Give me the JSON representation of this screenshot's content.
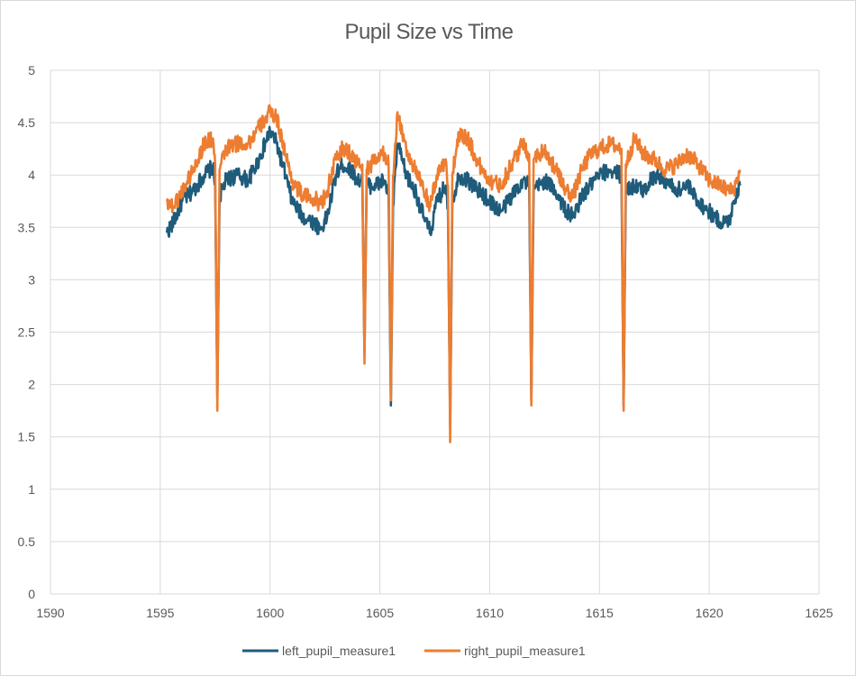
{
  "chart_data": {
    "type": "line",
    "title": "Pupil Size vs Time",
    "xlabel": "",
    "ylabel": "",
    "xlim": [
      1590,
      1625
    ],
    "ylim": [
      0,
      5
    ],
    "x_ticks": [
      "1590",
      "1595",
      "1600",
      "1605",
      "1610",
      "1615",
      "1620",
      "1625"
    ],
    "y_ticks": [
      "0",
      "0.5",
      "1",
      "1.5",
      "2",
      "2.5",
      "3",
      "3.5",
      "4",
      "4.5",
      "5"
    ],
    "grid": true,
    "legend_position": "bottom",
    "x_range": [
      1595.3,
      1621.4
    ],
    "series": [
      {
        "name": "left_pupil_measure1",
        "color": "#1f5b7a",
        "points": [
          [
            1595.3,
            3.45
          ],
          [
            1595.6,
            3.55
          ],
          [
            1596.0,
            3.75
          ],
          [
            1596.5,
            3.85
          ],
          [
            1597.0,
            4.0
          ],
          [
            1597.4,
            4.08
          ],
          [
            1597.5,
            3.9
          ],
          [
            1597.6,
            1.9
          ],
          [
            1597.7,
            3.8
          ],
          [
            1598.0,
            3.95
          ],
          [
            1598.5,
            4.0
          ],
          [
            1599.0,
            3.95
          ],
          [
            1599.5,
            4.15
          ],
          [
            1600.0,
            4.42
          ],
          [
            1600.3,
            4.3
          ],
          [
            1600.7,
            4.0
          ],
          [
            1601.0,
            3.75
          ],
          [
            1601.5,
            3.6
          ],
          [
            1602.0,
            3.55
          ],
          [
            1602.3,
            3.48
          ],
          [
            1602.6,
            3.6
          ],
          [
            1603.0,
            4.0
          ],
          [
            1603.3,
            4.1
          ],
          [
            1603.7,
            4.05
          ],
          [
            1604.0,
            3.95
          ],
          [
            1604.2,
            3.95
          ],
          [
            1604.3,
            2.3
          ],
          [
            1604.4,
            3.9
          ],
          [
            1604.8,
            3.9
          ],
          [
            1605.2,
            3.95
          ],
          [
            1605.4,
            3.8
          ],
          [
            1605.5,
            1.8
          ],
          [
            1605.6,
            3.7
          ],
          [
            1605.8,
            4.3
          ],
          [
            1606.2,
            4.0
          ],
          [
            1606.6,
            3.85
          ],
          [
            1607.0,
            3.6
          ],
          [
            1607.3,
            3.45
          ],
          [
            1607.6,
            3.75
          ],
          [
            1608.0,
            3.9
          ],
          [
            1608.1,
            3.7
          ],
          [
            1608.2,
            1.6
          ],
          [
            1608.3,
            3.75
          ],
          [
            1608.6,
            4.0
          ],
          [
            1609.0,
            3.95
          ],
          [
            1609.5,
            3.85
          ],
          [
            1610.0,
            3.75
          ],
          [
            1610.5,
            3.65
          ],
          [
            1611.0,
            3.8
          ],
          [
            1611.5,
            3.95
          ],
          [
            1611.8,
            3.9
          ],
          [
            1611.9,
            1.85
          ],
          [
            1612.0,
            3.85
          ],
          [
            1612.5,
            3.95
          ],
          [
            1613.0,
            3.85
          ],
          [
            1613.5,
            3.65
          ],
          [
            1613.8,
            3.6
          ],
          [
            1614.2,
            3.8
          ],
          [
            1614.6,
            3.9
          ],
          [
            1615.0,
            4.0
          ],
          [
            1615.5,
            4.05
          ],
          [
            1616.0,
            4.0
          ],
          [
            1616.1,
            1.8
          ],
          [
            1616.2,
            3.85
          ],
          [
            1616.6,
            3.9
          ],
          [
            1617.0,
            3.85
          ],
          [
            1617.5,
            4.0
          ],
          [
            1618.0,
            3.95
          ],
          [
            1618.5,
            3.85
          ],
          [
            1619.0,
            3.9
          ],
          [
            1619.5,
            3.75
          ],
          [
            1620.0,
            3.65
          ],
          [
            1620.5,
            3.55
          ],
          [
            1620.9,
            3.55
          ],
          [
            1621.1,
            3.75
          ],
          [
            1621.4,
            3.9
          ]
        ]
      },
      {
        "name": "right_pupil_measure1",
        "color": "#ed7d31",
        "points": [
          [
            1595.3,
            3.75
          ],
          [
            1595.6,
            3.7
          ],
          [
            1596.0,
            3.85
          ],
          [
            1596.5,
            4.05
          ],
          [
            1597.0,
            4.3
          ],
          [
            1597.4,
            4.35
          ],
          [
            1597.5,
            4.1
          ],
          [
            1597.6,
            1.75
          ],
          [
            1597.7,
            4.05
          ],
          [
            1598.0,
            4.25
          ],
          [
            1598.5,
            4.3
          ],
          [
            1599.0,
            4.3
          ],
          [
            1599.5,
            4.45
          ],
          [
            1600.0,
            4.6
          ],
          [
            1600.3,
            4.55
          ],
          [
            1600.7,
            4.2
          ],
          [
            1601.0,
            3.95
          ],
          [
            1601.5,
            3.8
          ],
          [
            1602.0,
            3.78
          ],
          [
            1602.3,
            3.72
          ],
          [
            1602.6,
            3.85
          ],
          [
            1603.0,
            4.15
          ],
          [
            1603.3,
            4.25
          ],
          [
            1603.7,
            4.2
          ],
          [
            1604.0,
            4.1
          ],
          [
            1604.2,
            4.1
          ],
          [
            1604.3,
            2.2
          ],
          [
            1604.4,
            4.05
          ],
          [
            1604.8,
            4.15
          ],
          [
            1605.2,
            4.2
          ],
          [
            1605.4,
            4.1
          ],
          [
            1605.5,
            1.85
          ],
          [
            1605.6,
            4.0
          ],
          [
            1605.8,
            4.6
          ],
          [
            1606.2,
            4.25
          ],
          [
            1606.6,
            4.05
          ],
          [
            1607.0,
            3.85
          ],
          [
            1607.3,
            3.7
          ],
          [
            1607.6,
            4.0
          ],
          [
            1608.0,
            4.15
          ],
          [
            1608.1,
            3.9
          ],
          [
            1608.2,
            1.45
          ],
          [
            1608.3,
            4.0
          ],
          [
            1608.6,
            4.4
          ],
          [
            1609.0,
            4.35
          ],
          [
            1609.5,
            4.1
          ],
          [
            1610.0,
            3.95
          ],
          [
            1610.5,
            3.9
          ],
          [
            1611.0,
            4.1
          ],
          [
            1611.5,
            4.3
          ],
          [
            1611.8,
            4.2
          ],
          [
            1611.9,
            1.8
          ],
          [
            1612.0,
            4.15
          ],
          [
            1612.5,
            4.25
          ],
          [
            1613.0,
            4.05
          ],
          [
            1613.5,
            3.85
          ],
          [
            1613.8,
            3.8
          ],
          [
            1614.2,
            4.05
          ],
          [
            1614.6,
            4.2
          ],
          [
            1615.0,
            4.25
          ],
          [
            1615.5,
            4.3
          ],
          [
            1616.0,
            4.25
          ],
          [
            1616.1,
            1.75
          ],
          [
            1616.2,
            4.1
          ],
          [
            1616.6,
            4.35
          ],
          [
            1617.0,
            4.2
          ],
          [
            1617.5,
            4.15
          ],
          [
            1618.0,
            4.05
          ],
          [
            1618.5,
            4.1
          ],
          [
            1619.0,
            4.2
          ],
          [
            1619.5,
            4.1
          ],
          [
            1620.0,
            3.95
          ],
          [
            1620.5,
            3.9
          ],
          [
            1620.9,
            3.85
          ],
          [
            1621.1,
            3.85
          ],
          [
            1621.4,
            4.05
          ]
        ]
      }
    ]
  }
}
